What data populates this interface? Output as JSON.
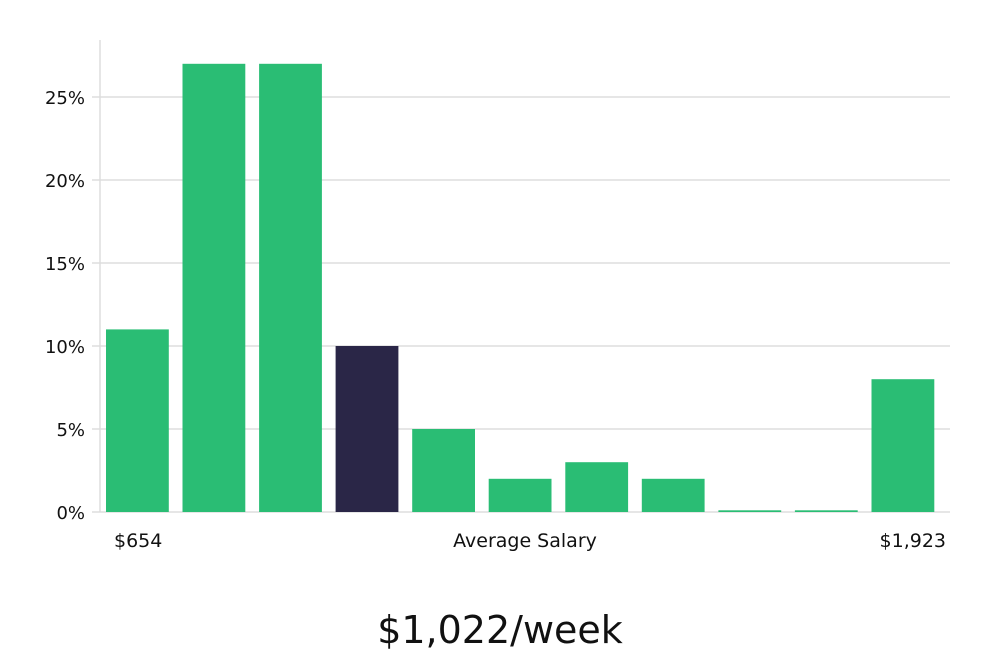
{
  "chart_data": {
    "type": "bar",
    "categories": [
      "bin-1",
      "bin-2",
      "bin-3",
      "bin-4",
      "bin-5",
      "bin-6",
      "bin-7",
      "bin-8",
      "bin-9",
      "bin-10",
      "bin-11"
    ],
    "values": [
      11,
      27,
      27,
      10,
      5,
      2,
      3,
      2,
      0.1,
      0.1,
      8
    ],
    "highlight_index": 3,
    "ylim": [
      0,
      28
    ],
    "yticks": [
      0,
      5,
      10,
      15,
      20,
      25
    ],
    "ytick_labels": [
      "0%",
      "5%",
      "10%",
      "15%",
      "20%",
      "25%"
    ],
    "x_labels": {
      "left": "$654",
      "center": "Average Salary",
      "right": "$1,923"
    },
    "grid": true,
    "colors": {
      "bar": "#2abd74",
      "highlight": "#2a2647"
    }
  },
  "salary_text": "$1,022/week"
}
